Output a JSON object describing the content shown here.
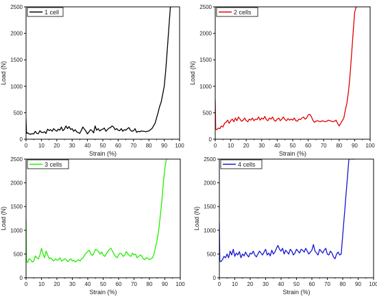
{
  "chart_data": [
    {
      "type": "line",
      "title": "",
      "xlabel": "Strain (%)",
      "ylabel": "Load (N)",
      "xlim": [
        0,
        100
      ],
      "ylim": [
        0,
        2500
      ],
      "xticks": [
        0,
        10,
        20,
        30,
        40,
        50,
        60,
        70,
        80,
        90,
        100
      ],
      "yticks": [
        0,
        500,
        1000,
        1500,
        2000,
        2500
      ],
      "grid": false,
      "legend_position": "top-left",
      "series": [
        {
          "name": "1 cell",
          "color": "#000000",
          "x": [
            0,
            0.3,
            1,
            2,
            3,
            4,
            5,
            6,
            7,
            8,
            9,
            10,
            11,
            12,
            13,
            14,
            15,
            16,
            17,
            18,
            19,
            20,
            21,
            22,
            23,
            24,
            25,
            26,
            27,
            28,
            29,
            30,
            31,
            32,
            33,
            34,
            35,
            36,
            37,
            38,
            39,
            40,
            41,
            42,
            43,
            44,
            45,
            46,
            47,
            48,
            49,
            50,
            51,
            52,
            53,
            54,
            55,
            56,
            57,
            58,
            59,
            60,
            61,
            62,
            63,
            64,
            65,
            66,
            67,
            68,
            69,
            70,
            71,
            72,
            73,
            74,
            75,
            76,
            77,
            78,
            79,
            80,
            81,
            82,
            83,
            84,
            85,
            86,
            87,
            88,
            89,
            90,
            91,
            92,
            93,
            94,
            95
          ],
          "y": [
            380,
            110,
            120,
            100,
            95,
            105,
            100,
            150,
            110,
            105,
            160,
            130,
            125,
            140,
            110,
            190,
            165,
            180,
            150,
            200,
            170,
            150,
            190,
            170,
            230,
            160,
            190,
            250,
            200,
            240,
            185,
            200,
            150,
            180,
            140,
            125,
            110,
            165,
            230,
            190,
            150,
            100,
            140,
            180,
            160,
            120,
            250,
            170,
            200,
            155,
            180,
            190,
            210,
            150,
            180,
            210,
            220,
            250,
            230,
            180,
            200,
            170,
            160,
            200,
            150,
            180,
            170,
            200,
            220,
            170,
            150,
            160,
            200,
            130,
            150,
            140,
            155,
            150,
            150,
            140,
            150,
            155,
            180,
            200,
            250,
            300,
            400,
            500,
            620,
            700,
            850,
            1000,
            1300,
            1700,
            2100,
            2500,
            2500
          ]
        }
      ]
    },
    {
      "type": "line",
      "title": "",
      "xlabel": "Strain (%)",
      "ylabel": "Load (N)",
      "xlim": [
        0,
        100
      ],
      "ylim": [
        0,
        2500
      ],
      "xticks": [
        0,
        10,
        20,
        30,
        40,
        50,
        60,
        70,
        80,
        90,
        100
      ],
      "yticks": [
        0,
        500,
        1000,
        1500,
        2000,
        2500
      ],
      "grid": false,
      "legend_position": "top-left",
      "series": [
        {
          "name": "2 cells",
          "color": "#e00000",
          "x": [
            0,
            0.3,
            1,
            2,
            3,
            4,
            5,
            6,
            7,
            8,
            9,
            10,
            11,
            12,
            13,
            14,
            15,
            16,
            17,
            18,
            19,
            20,
            21,
            22,
            23,
            24,
            25,
            26,
            27,
            28,
            29,
            30,
            31,
            32,
            33,
            34,
            35,
            36,
            37,
            38,
            39,
            40,
            41,
            42,
            43,
            44,
            45,
            46,
            47,
            48,
            49,
            50,
            51,
            52,
            53,
            54,
            55,
            56,
            57,
            58,
            59,
            60,
            61,
            62,
            63,
            64,
            65,
            66,
            67,
            68,
            69,
            70,
            71,
            72,
            73,
            74,
            75,
            76,
            77,
            78,
            79,
            80,
            81,
            82,
            83,
            84,
            85,
            86,
            87,
            88,
            89,
            90,
            91,
            92
          ],
          "y": [
            750,
            190,
            180,
            210,
            200,
            250,
            230,
            300,
            320,
            360,
            300,
            350,
            380,
            330,
            400,
            350,
            420,
            380,
            340,
            360,
            400,
            350,
            330,
            380,
            360,
            400,
            350,
            380,
            370,
            420,
            360,
            400,
            380,
            430,
            370,
            350,
            400,
            380,
            420,
            360,
            340,
            380,
            400,
            350,
            380,
            420,
            370,
            350,
            390,
            360,
            380,
            360,
            400,
            350,
            340,
            380,
            370,
            400,
            420,
            380,
            400,
            460,
            470,
            430,
            360,
            320,
            340,
            350,
            340,
            330,
            350,
            340,
            330,
            340,
            360,
            350,
            340,
            330,
            340,
            360,
            300,
            250,
            300,
            350,
            400,
            550,
            680,
            900,
            1200,
            1600,
            2000,
            2400,
            2500,
            2500
          ]
        }
      ]
    },
    {
      "type": "line",
      "title": "",
      "xlabel": "Strain (%)",
      "ylabel": "Load (N)",
      "xlim": [
        0,
        100
      ],
      "ylim": [
        0,
        2500
      ],
      "xticks": [
        0,
        10,
        20,
        30,
        40,
        50,
        60,
        70,
        80,
        90,
        100
      ],
      "yticks": [
        0,
        500,
        1000,
        1500,
        2000,
        2500
      ],
      "grid": false,
      "legend_position": "top-left",
      "series": [
        {
          "name": "3 cells",
          "color": "#22ee00",
          "x": [
            0,
            0.3,
            1,
            2,
            3,
            4,
            5,
            6,
            7,
            8,
            9,
            10,
            11,
            12,
            13,
            14,
            15,
            16,
            17,
            18,
            19,
            20,
            21,
            22,
            23,
            24,
            25,
            26,
            27,
            28,
            29,
            30,
            31,
            32,
            33,
            34,
            35,
            36,
            37,
            38,
            39,
            40,
            41,
            42,
            43,
            44,
            45,
            46,
            47,
            48,
            49,
            50,
            51,
            52,
            53,
            54,
            55,
            56,
            57,
            58,
            59,
            60,
            61,
            62,
            63,
            64,
            65,
            66,
            67,
            68,
            69,
            70,
            71,
            72,
            73,
            74,
            75,
            76,
            77,
            78,
            79,
            80,
            81,
            82,
            83,
            84,
            85,
            86,
            87,
            88,
            89,
            90,
            91,
            92
          ],
          "y": [
            1250,
            350,
            320,
            400,
            380,
            330,
            350,
            460,
            420,
            400,
            480,
            620,
            500,
            420,
            560,
            480,
            400,
            420,
            380,
            350,
            400,
            370,
            380,
            420,
            350,
            370,
            400,
            380,
            340,
            370,
            400,
            350,
            370,
            330,
            360,
            380,
            350,
            400,
            420,
            480,
            520,
            550,
            580,
            500,
            470,
            520,
            600,
            580,
            550,
            500,
            540,
            480,
            450,
            500,
            550,
            600,
            620,
            560,
            500,
            450,
            420,
            480,
            520,
            500,
            450,
            480,
            550,
            500,
            470,
            450,
            520,
            480,
            500,
            420,
            450,
            480,
            460,
            400,
            380,
            420,
            410,
            380,
            400,
            420,
            500,
            650,
            800,
            1000,
            1300,
            1600,
            2000,
            2300,
            2500,
            2500
          ]
        }
      ]
    },
    {
      "type": "line",
      "title": "",
      "xlabel": "Strain (%)",
      "ylabel": "Load (N)",
      "xlim": [
        0,
        100
      ],
      "ylim": [
        0,
        2500
      ],
      "xticks": [
        0,
        10,
        20,
        30,
        40,
        50,
        60,
        70,
        80,
        90,
        100
      ],
      "yticks": [
        0,
        500,
        1000,
        1500,
        2000,
        2500
      ],
      "grid": false,
      "legend_position": "top-left",
      "series": [
        {
          "name": "4 cells",
          "color": "#1515d0",
          "x": [
            0,
            0.3,
            1,
            2,
            3,
            4,
            5,
            6,
            7,
            8,
            9,
            10,
            11,
            12,
            13,
            14,
            15,
            16,
            17,
            18,
            19,
            20,
            21,
            22,
            23,
            24,
            25,
            26,
            27,
            28,
            29,
            30,
            31,
            32,
            33,
            34,
            35,
            36,
            37,
            38,
            39,
            40,
            41,
            42,
            43,
            44,
            45,
            46,
            47,
            48,
            49,
            50,
            51,
            52,
            53,
            54,
            55,
            56,
            57,
            58,
            59,
            60,
            61,
            62,
            63,
            64,
            65,
            66,
            67,
            68,
            69,
            70,
            71,
            72,
            73,
            74,
            75,
            76,
            77,
            78,
            79,
            80,
            81,
            82,
            83,
            84,
            85,
            86,
            87,
            88
          ],
          "y": [
            1150,
            350,
            340,
            380,
            450,
            420,
            500,
            420,
            560,
            480,
            600,
            450,
            520,
            480,
            550,
            420,
            500,
            460,
            540,
            480,
            440,
            520,
            500,
            560,
            480,
            440,
            500,
            560,
            520,
            480,
            540,
            600,
            480,
            520,
            460,
            580,
            500,
            540,
            620,
            680,
            600,
            560,
            620,
            500,
            580,
            540,
            500,
            600,
            560,
            480,
            520,
            600,
            560,
            520,
            600,
            580,
            540,
            620,
            560,
            500,
            540,
            580,
            700,
            560,
            520,
            480,
            600,
            560,
            520,
            580,
            620,
            500,
            480,
            560,
            520,
            440,
            400,
            500,
            540,
            480,
            500,
            900,
            1300,
            1700,
            2100,
            2500,
            2500,
            2500,
            2500,
            2500
          ]
        }
      ]
    }
  ]
}
